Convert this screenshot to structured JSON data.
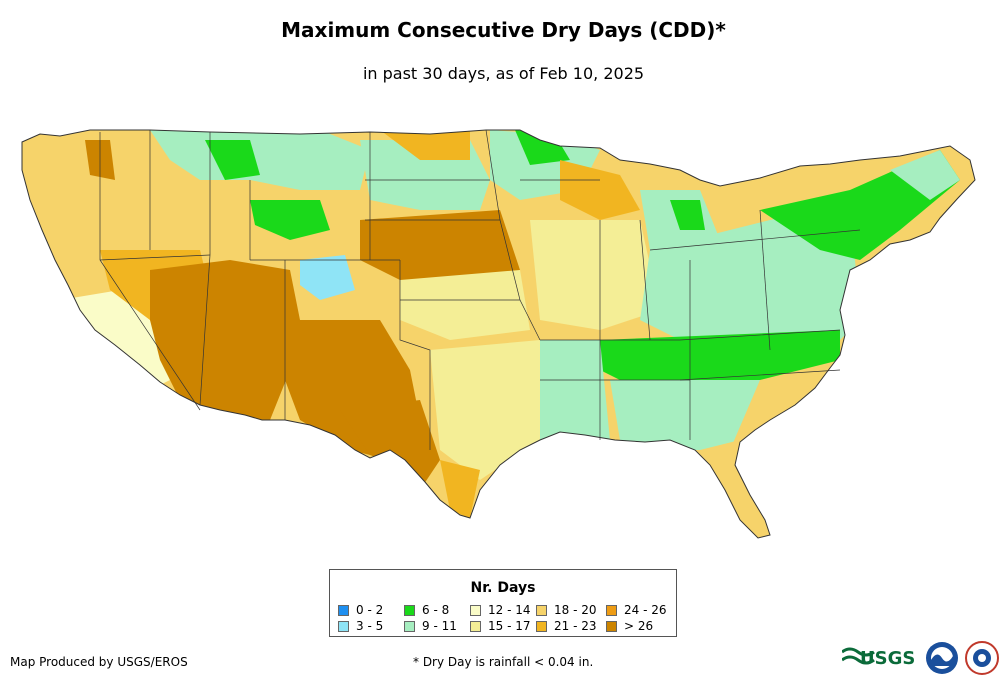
{
  "header": {
    "title": "Maximum Consecutive Dry Days (CDD)*",
    "subtitle": "in past 30 days, as of Feb 10, 2025"
  },
  "legend": {
    "title": "Nr. Days",
    "items": [
      {
        "label": "0 - 2",
        "color": "#1e8ff0"
      },
      {
        "label": "3 - 5",
        "color": "#8fe4f6"
      },
      {
        "label": "6 - 8",
        "color": "#1ad91a"
      },
      {
        "label": "9 - 11",
        "color": "#a6eec0"
      },
      {
        "label": "12 - 14",
        "color": "#fafcc8"
      },
      {
        "label": "15 - 17",
        "color": "#f4ee96"
      },
      {
        "label": "18 - 20",
        "color": "#f6d36a"
      },
      {
        "label": "21 - 23",
        "color": "#f1b521"
      },
      {
        "label": "24 - 26",
        "color": "#ee9c14"
      },
      {
        "label": "> 26",
        "color": "#cc8400"
      }
    ]
  },
  "footer": {
    "credit": "Map Produced by USGS/EROS",
    "footnote": "* Dry Day is rainfall < 0.04 in.",
    "logo_text": "USGS"
  },
  "map": {
    "border_color": "#333333"
  }
}
